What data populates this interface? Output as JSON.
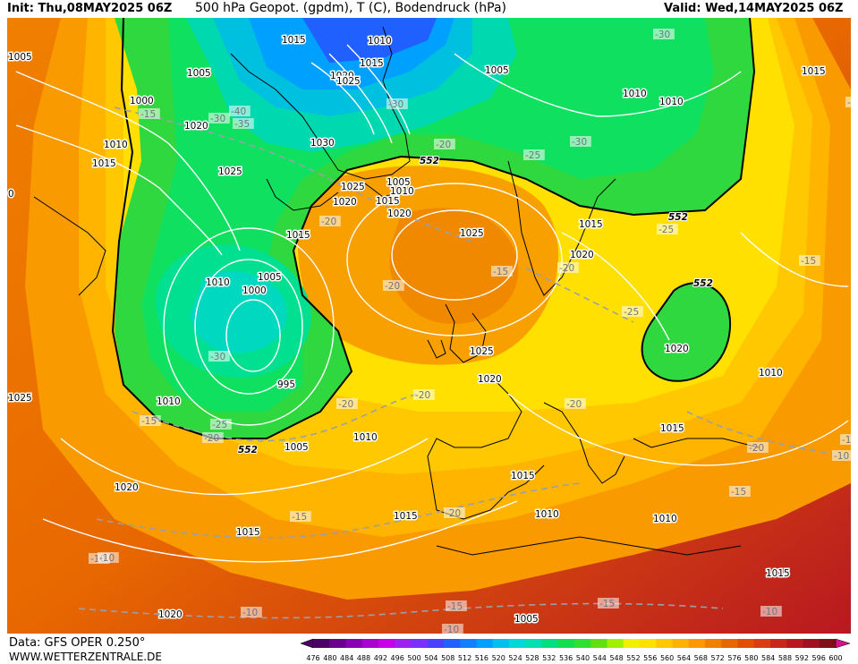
{
  "header": {
    "init": "Init: Thu,08MAY2025 06Z",
    "title": "500 hPa Geopot. (gpdm), T (C), Bodendruck (hPa)",
    "valid": "Valid: Wed,14MAY2025 06Z"
  },
  "footer": {
    "data_source": "Data: GFS OPER 0.250°",
    "website": "WWW.WETTERZENTRALE.DE"
  },
  "colorbar": {
    "labels": [
      "476",
      "480",
      "484",
      "488",
      "492",
      "496",
      "500",
      "504",
      "508",
      "512",
      "516",
      "520",
      "524",
      "528",
      "532",
      "536",
      "540",
      "544",
      "548",
      "552",
      "556",
      "560",
      "564",
      "568",
      "572",
      "576",
      "580",
      "584",
      "588",
      "592",
      "596",
      "600"
    ],
    "colors": [
      "#4b0064",
      "#6a0090",
      "#8a00b4",
      "#aa00d0",
      "#c800e8",
      "#a020f0",
      "#7a30ff",
      "#4a40ff",
      "#2060ff",
      "#1080ff",
      "#00a0ff",
      "#00c0f0",
      "#00d8d8",
      "#00e0b0",
      "#00e080",
      "#10e050",
      "#30e030",
      "#60e010",
      "#a0f000",
      "#f0f000",
      "#ffe000",
      "#ffc800",
      "#ffb000",
      "#ff9800",
      "#f08000",
      "#e86800",
      "#e05000",
      "#d83c10",
      "#c82818",
      "#b81820",
      "#a01020",
      "#801018"
    ]
  },
  "map": {
    "geopotential_labels": [
      {
        "text": "552"
      },
      {
        "text": "552"
      },
      {
        "text": "552"
      },
      {
        "text": "552"
      }
    ],
    "pressure_labels": [
      {
        "text": "1005"
      },
      {
        "text": "1015"
      },
      {
        "text": "1010"
      },
      {
        "text": "1015"
      },
      {
        "text": "1005"
      },
      {
        "text": "1020"
      },
      {
        "text": "1025"
      },
      {
        "text": "1005"
      },
      {
        "text": "1000"
      },
      {
        "text": "1020"
      },
      {
        "text": "1010"
      },
      {
        "text": "1010"
      },
      {
        "text": "1015"
      },
      {
        "text": "1030"
      },
      {
        "text": "1010"
      },
      {
        "text": "1025"
      },
      {
        "text": "1025"
      },
      {
        "text": "1005"
      },
      {
        "text": "1010"
      },
      {
        "text": "1020"
      },
      {
        "text": "1015"
      },
      {
        "text": "1020"
      },
      {
        "text": "1015"
      },
      {
        "text": "1025"
      },
      {
        "text": "1015"
      },
      {
        "text": "1020"
      },
      {
        "text": "1010"
      },
      {
        "text": "1005"
      },
      {
        "text": "1000"
      },
      {
        "text": "995"
      },
      {
        "text": "1010"
      },
      {
        "text": "1005"
      },
      {
        "text": "1025"
      },
      {
        "text": "1020"
      },
      {
        "text": "1020"
      },
      {
        "text": "1010"
      },
      {
        "text": "1015"
      },
      {
        "text": "1010"
      },
      {
        "text": "1015"
      },
      {
        "text": "1010"
      },
      {
        "text": "1015"
      },
      {
        "text": "1010"
      },
      {
        "text": "1015"
      },
      {
        "text": "1015"
      },
      {
        "text": "1020"
      },
      {
        "text": "1015"
      },
      {
        "text": "1020"
      },
      {
        "text": "1005"
      },
      {
        "text": "1025"
      },
      {
        "text": "0"
      }
    ],
    "temperature_labels": [
      {
        "text": "-30"
      },
      {
        "text": "-15"
      },
      {
        "text": "-30"
      },
      {
        "text": "-40"
      },
      {
        "text": "-35"
      },
      {
        "text": "-30"
      },
      {
        "text": "-20"
      },
      {
        "text": "-25"
      },
      {
        "text": "-30"
      },
      {
        "text": "-20"
      },
      {
        "text": "-15"
      },
      {
        "text": "-20"
      },
      {
        "text": "-20"
      },
      {
        "text": "-25"
      },
      {
        "text": "-15"
      },
      {
        "text": "-25"
      },
      {
        "text": "-30"
      },
      {
        "text": "-15"
      },
      {
        "text": "-25"
      },
      {
        "text": "-20"
      },
      {
        "text": "-20"
      },
      {
        "text": "-20"
      },
      {
        "text": "-15"
      },
      {
        "text": "-20"
      },
      {
        "text": "-15"
      },
      {
        "text": "-10"
      },
      {
        "text": "-20"
      },
      {
        "text": "-15"
      },
      {
        "text": "-10"
      },
      {
        "text": "-10"
      },
      {
        "text": "-15"
      },
      {
        "text": "-10"
      },
      {
        "text": "-10"
      },
      {
        "text": "-10"
      },
      {
        "text": "-10"
      },
      {
        "text": "-20"
      },
      {
        "text": "-15"
      }
    ]
  }
}
